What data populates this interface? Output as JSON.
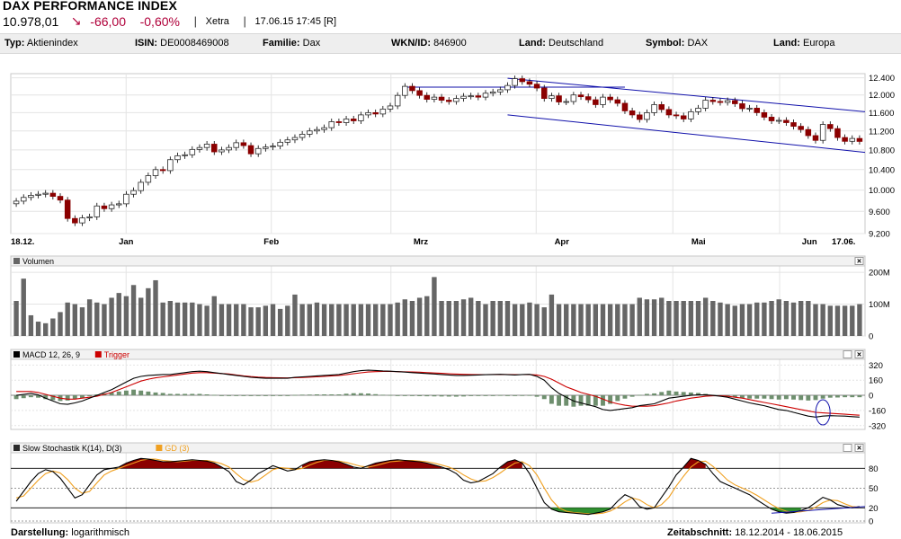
{
  "header": {
    "title": "DAX PERFORMANCE INDEX",
    "price": "10.978,01",
    "arrow": "↘",
    "change": "-66,00",
    "change_pct": "-0,60%",
    "exchange": "Xetra",
    "timestamp": "17.06.15 17:45 [R]"
  },
  "info": [
    {
      "label": "Typ:",
      "value": "Aktienindex"
    },
    {
      "label": "ISIN:",
      "value": "DE0008469008"
    },
    {
      "label": "Familie:",
      "value": "Dax"
    },
    {
      "label": "WKN/ID:",
      "value": "846900"
    },
    {
      "label": "Land:",
      "value": "Deutschland"
    },
    {
      "label": "Symbol:",
      "value": "DAX"
    },
    {
      "label": "Land:",
      "value": "Europa"
    }
  ],
  "footer": {
    "display_label": "Darstellung:",
    "display_value": "logarithmisch",
    "period_label": "Zeitabschnitt:",
    "period_value": "18.12.2014 - 18.06.2015"
  },
  "colors": {
    "up": "#ffffff",
    "down": "#8b0000",
    "volume": "#666666",
    "macd": "#000000",
    "trigger": "#cc0000",
    "histogram": "#6e8f6e",
    "stoch_k": "#000000",
    "stoch_d": "#f0a020",
    "stoch_fill_high": "#8b0000",
    "stoch_fill_low": "#2f8f2f",
    "channel": "#1010aa"
  },
  "chart_data": [
    {
      "type": "candlestick",
      "name": "price",
      "x_labels": [
        "18.12.",
        "Jan",
        "Feb",
        "Mrz",
        "Apr",
        "Mai",
        "Jun",
        "17.06."
      ],
      "y_ticks": [
        "12.400",
        "12.000",
        "11.600",
        "11.200",
        "10.800",
        "10.400",
        "10.000",
        "9.600",
        "9.200"
      ],
      "ylim": [
        9200,
        12500
      ],
      "scale": "logarithmisch",
      "close": [
        9790,
        9860,
        9900,
        9920,
        9940,
        9880,
        9810,
        9470,
        9390,
        9480,
        9500,
        9700,
        9650,
        9720,
        9740,
        9920,
        9990,
        10150,
        10280,
        10400,
        10380,
        10600,
        10680,
        10700,
        10810,
        10850,
        10920,
        10760,
        10800,
        10850,
        10950,
        10890,
        10720,
        10830,
        10860,
        10880,
        10960,
        11010,
        11060,
        11130,
        11200,
        11230,
        11270,
        11400,
        11380,
        11460,
        11420,
        11550,
        11600,
        11570,
        11680,
        11750,
        11990,
        12200,
        12100,
        11990,
        11900,
        11950,
        11880,
        11850,
        11920,
        11970,
        11980,
        11950,
        12040,
        12070,
        12120,
        12220,
        12380,
        12310,
        12250,
        12160,
        11920,
        11980,
        11840,
        11850,
        12000,
        11960,
        11890,
        11780,
        11950,
        11890,
        11810,
        11640,
        11550,
        11450,
        11600,
        11780,
        11670,
        11550,
        11530,
        11460,
        11620,
        11700,
        11880,
        11850,
        11830,
        11870,
        11800,
        11690,
        11700,
        11600,
        11500,
        11420,
        11430,
        11380,
        11300,
        11230,
        11100,
        11000,
        11340,
        11250,
        11060,
        10980,
        11040,
        10978
      ],
      "xlim": [
        0,
        115
      ],
      "channel_note": "descending trend channel"
    },
    {
      "type": "bar",
      "name": "Volumen",
      "y_ticks": [
        "200M",
        "100M",
        "0"
      ],
      "ylim": [
        0,
        220
      ],
      "values": [
        110,
        180,
        65,
        45,
        40,
        55,
        75,
        105,
        100,
        90,
        115,
        105,
        100,
        120,
        135,
        125,
        160,
        120,
        150,
        175,
        105,
        110,
        105,
        105,
        105,
        100,
        95,
        125,
        100,
        100,
        100,
        100,
        90,
        90,
        95,
        100,
        85,
        95,
        130,
        100,
        100,
        105,
        100,
        100,
        100,
        100,
        100,
        100,
        100,
        100,
        100,
        100,
        105,
        115,
        110,
        120,
        125,
        185,
        110,
        110,
        110,
        115,
        120,
        110,
        100,
        110,
        110,
        110,
        100,
        100,
        105,
        100,
        90,
        130,
        100,
        100,
        100,
        100,
        100,
        100,
        100,
        100,
        100,
        100,
        100,
        120,
        115,
        115,
        120,
        110,
        110,
        110,
        110,
        110,
        120,
        110,
        105,
        100,
        95,
        100,
        100,
        105,
        105,
        110,
        115,
        110,
        105,
        110,
        110,
        100,
        100,
        95,
        95,
        95,
        95,
        100
      ]
    },
    {
      "type": "line",
      "name": "MACD",
      "legend": [
        "MACD 12, 26, 9",
        "Trigger"
      ],
      "y_ticks": [
        "320",
        "160",
        "0",
        "-160",
        "-320"
      ],
      "ylim": [
        -360,
        380
      ],
      "macd": [
        0,
        10,
        20,
        5,
        -30,
        -60,
        -90,
        -95,
        -80,
        -60,
        -30,
        0,
        30,
        60,
        100,
        140,
        180,
        200,
        210,
        215,
        220,
        220,
        230,
        240,
        250,
        255,
        250,
        240,
        230,
        220,
        210,
        200,
        190,
        185,
        180,
        180,
        180,
        180,
        190,
        195,
        200,
        205,
        210,
        215,
        220,
        235,
        250,
        260,
        265,
        262,
        258,
        255,
        250,
        245,
        240,
        235,
        230,
        225,
        220,
        215,
        210,
        210,
        212,
        215,
        218,
        220,
        222,
        218,
        215,
        220,
        222,
        200,
        160,
        80,
        20,
        -20,
        -60,
        -80,
        -100,
        -120,
        -150,
        -160,
        -150,
        -140,
        -130,
        -110,
        -100,
        -90,
        -60,
        -30,
        -20,
        -10,
        0,
        5,
        5,
        0,
        -10,
        -20,
        -40,
        -60,
        -80,
        -95,
        -110,
        -130,
        -150,
        -160,
        -180,
        -200,
        -220,
        -230,
        -220,
        -215,
        -218,
        -220,
        -225,
        -230
      ],
      "trigger": [
        40,
        40,
        40,
        30,
        10,
        -10,
        -30,
        -40,
        -40,
        -30,
        -20,
        -10,
        10,
        30,
        60,
        90,
        120,
        150,
        170,
        185,
        195,
        205,
        215,
        225,
        235,
        240,
        240,
        235,
        230,
        225,
        215,
        205,
        198,
        192,
        188,
        186,
        185,
        184,
        186,
        188,
        192,
        195,
        200,
        205,
        210,
        218,
        228,
        238,
        246,
        250,
        252,
        252,
        250,
        248,
        246,
        244,
        240,
        236,
        232,
        228,
        224,
        222,
        220,
        219,
        219,
        220,
        220,
        220,
        219,
        219,
        220,
        215,
        200,
        170,
        130,
        90,
        60,
        30,
        10,
        -10,
        -40,
        -70,
        -90,
        -105,
        -115,
        -115,
        -115,
        -110,
        -95,
        -80,
        -60,
        -45,
        -30,
        -20,
        -10,
        -5,
        -5,
        -10,
        -20,
        -30,
        -45,
        -60,
        -75,
        -90,
        -105,
        -120,
        -135,
        -150,
        -165,
        -180,
        -185,
        -190,
        -195,
        -200,
        -205,
        -210
      ],
      "histogram": [
        -40,
        -30,
        -20,
        -25,
        -40,
        -50,
        -60,
        -55,
        -40,
        -30,
        -10,
        10,
        20,
        30,
        40,
        50,
        60,
        50,
        40,
        30,
        25,
        15,
        15,
        15,
        15,
        15,
        10,
        5,
        0,
        -5,
        -5,
        -5,
        -8,
        -7,
        -8,
        -6,
        -5,
        -4,
        4,
        7,
        8,
        10,
        10,
        10,
        10,
        17,
        22,
        22,
        19,
        12,
        6,
        3,
        0,
        -3,
        -6,
        -9,
        -10,
        -11,
        -12,
        -13,
        -14,
        -12,
        -8,
        -4,
        -1,
        0,
        2,
        -2,
        -4,
        1,
        2,
        -15,
        -40,
        -90,
        -110,
        -110,
        -120,
        -110,
        -110,
        -110,
        -110,
        -90,
        -60,
        -35,
        -15,
        5,
        15,
        20,
        35,
        50,
        40,
        35,
        30,
        25,
        15,
        5,
        -5,
        -10,
        -20,
        -30,
        -35,
        -35,
        -35,
        -40,
        -45,
        -40,
        -45,
        -50,
        -55,
        -50,
        -35,
        -25,
        -23,
        -20,
        -20,
        -20
      ]
    },
    {
      "type": "line",
      "name": "Slow Stochastik",
      "legend": [
        "Slow Stochastik K(14), D(3)",
        "GD (3)"
      ],
      "y_ticks": [
        "80",
        "50",
        "20",
        "0"
      ],
      "ylim": [
        0,
        100
      ],
      "k": [
        30,
        45,
        60,
        72,
        78,
        75,
        65,
        50,
        35,
        40,
        55,
        70,
        78,
        80,
        82,
        88,
        92,
        95,
        94,
        92,
        90,
        90,
        91,
        92,
        93,
        92,
        91,
        88,
        82,
        75,
        60,
        55,
        62,
        72,
        78,
        84,
        80,
        76,
        78,
        85,
        90,
        92,
        93,
        92,
        90,
        86,
        82,
        80,
        84,
        88,
        90,
        92,
        93,
        92,
        91,
        90,
        88,
        85,
        82,
        78,
        72,
        62,
        58,
        60,
        66,
        72,
        82,
        90,
        93,
        88,
        72,
        50,
        28,
        18,
        14,
        13,
        12,
        11,
        10,
        12,
        14,
        18,
        30,
        40,
        35,
        22,
        18,
        20,
        36,
        52,
        70,
        82,
        95,
        92,
        86,
        72,
        60,
        55,
        50,
        45,
        40,
        32,
        25,
        18,
        14,
        12,
        13,
        16,
        20,
        28,
        36,
        32,
        25,
        22,
        20,
        22
      ],
      "d": [
        35,
        38,
        50,
        62,
        72,
        76,
        73,
        63,
        50,
        42,
        45,
        58,
        70,
        76,
        80,
        84,
        88,
        92,
        94,
        94,
        92,
        91,
        90,
        91,
        92,
        92,
        92,
        90,
        87,
        82,
        72,
        63,
        59,
        62,
        70,
        78,
        81,
        80,
        78,
        80,
        85,
        89,
        92,
        92,
        91,
        89,
        86,
        83,
        82,
        84,
        87,
        90,
        91,
        92,
        92,
        91,
        90,
        88,
        85,
        82,
        77,
        70,
        64,
        60,
        61,
        66,
        73,
        81,
        88,
        90,
        84,
        70,
        50,
        32,
        20,
        15,
        13,
        12,
        11,
        11,
        12,
        15,
        21,
        29,
        35,
        32,
        25,
        20,
        25,
        36,
        53,
        68,
        82,
        90,
        91,
        83,
        73,
        62,
        55,
        50,
        45,
        39,
        32,
        25,
        19,
        15,
        13,
        14,
        16,
        21,
        28,
        32,
        31,
        26,
        22,
        21
      ]
    }
  ]
}
